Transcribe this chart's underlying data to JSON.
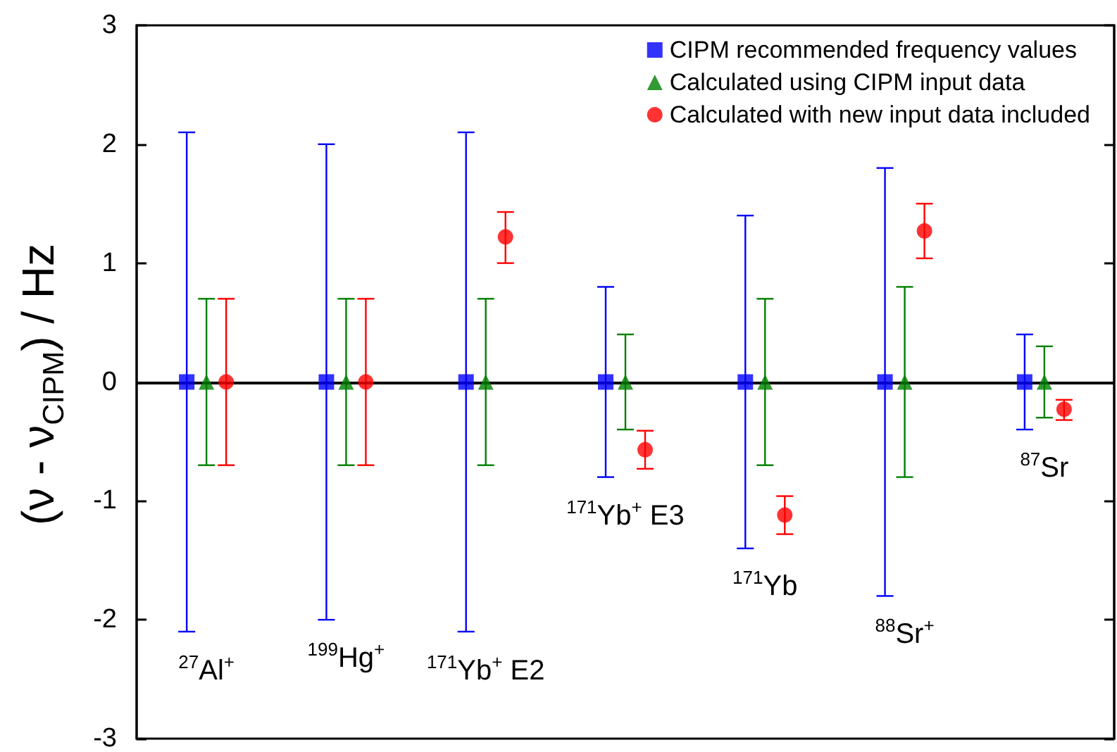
{
  "chart_data": {
    "type": "scatter",
    "ylabel": "(ν - ν$_{CIPM}$) / Hz",
    "categories": [
      null,
      null,
      null,
      null,
      null,
      null,
      null
    ],
    "series": [
      {
        "name": "CIPM recommended frequency values",
        "color": "#0000ff",
        "marker": "square",
        "values": [
          0,
          0,
          0,
          0,
          0,
          0,
          0
        ],
        "errors": [
          2.1,
          2.0,
          2.1,
          0.8,
          1.4,
          1.8,
          0.4
        ]
      },
      {
        "name": "Calculated using CIPM input data",
        "color": "#008000",
        "marker": "triangle",
        "values": [
          0,
          0,
          0,
          0,
          0,
          0,
          0
        ],
        "errors": [
          0.7,
          0.7,
          0.7,
          0.4,
          0.7,
          0.8,
          0.3
        ]
      },
      {
        "name": "Calculated with new input data included",
        "color": "#ff0000",
        "marker": "circle",
        "values": [
          0,
          0,
          1.22,
          -0.57,
          -1.12,
          1.27,
          -0.23
        ],
        "errors": [
          0.7,
          0.7,
          [
            1.0,
            1.43
          ],
          [
            -0.73,
            -0.41
          ],
          [
            -1.28,
            -0.96
          ],
          [
            1.04,
            1.5
          ],
          [
            -0.32,
            -0.15
          ]
        ]
      }
    ],
    "annotations": [
      "$^{27}$Al$^{+}$",
      "$^{199}$Hg$^{+}$",
      "$^{171}$Yb$^{+}$ E2",
      "$^{171}$Yb$^{+}$ E3",
      "$^{171}$Yb",
      "$^{88}$Sr$^{+}$",
      "$^{87}$Sr"
    ],
    "ylim": [
      -3,
      3
    ],
    "yticks": [
      -3,
      -2,
      -1,
      0,
      1,
      2,
      3
    ],
    "ref_lines": [
      {
        "axis": "y",
        "value": 0,
        "color": "#000000"
      }
    ],
    "grid": false,
    "legend": "top right"
  }
}
